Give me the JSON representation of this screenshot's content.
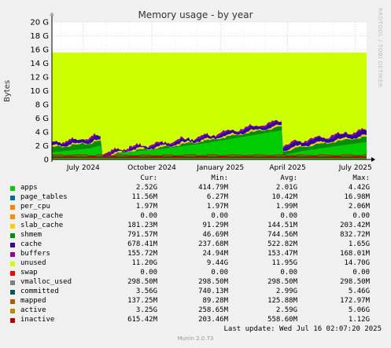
{
  "title": "Memory usage - by year",
  "side_text": "RRDTOOL / TOBI OETIKER",
  "footer": "Munin 2.0.73",
  "last_update": "Last update: Wed Jul 16 02:07:20 2025",
  "legend_headers": {
    "cur": "Cur:",
    "min": "Min:",
    "avg": "Avg:",
    "max": "Max:"
  },
  "legend": [
    {
      "name": "apps",
      "color": "#00cc00",
      "cur": "2.52G",
      "min": "414.79M",
      "avg": "2.01G",
      "max": "4.42G"
    },
    {
      "name": "page_tables",
      "color": "#0066b3",
      "cur": "11.56M",
      "min": "6.27M",
      "avg": "10.42M",
      "max": "16.98M"
    },
    {
      "name": "per_cpu",
      "color": "#ff8000",
      "cur": "1.97M",
      "min": "1.97M",
      "avg": "1.99M",
      "max": "2.06M"
    },
    {
      "name": "swap_cache",
      "color": "#ff8c00",
      "cur": "0.00",
      "min": "0.00",
      "avg": "0.00",
      "max": "0.00"
    },
    {
      "name": "slab_cache",
      "color": "#ffcc00",
      "cur": "181.23M",
      "min": "91.29M",
      "avg": "144.51M",
      "max": "203.42M"
    },
    {
      "name": "shmem",
      "color": "#008f00",
      "cur": "791.57M",
      "min": "46.69M",
      "avg": "744.56M",
      "max": "832.72M"
    },
    {
      "name": "cache",
      "color": "#330099",
      "cur": "678.41M",
      "min": "237.68M",
      "avg": "522.82M",
      "max": "1.65G"
    },
    {
      "name": "buffers",
      "color": "#990099",
      "cur": "155.72M",
      "min": "24.94M",
      "avg": "153.47M",
      "max": "168.01M"
    },
    {
      "name": "unused",
      "color": "#ccff00",
      "cur": "11.20G",
      "min": "9.44G",
      "avg": "11.95G",
      "max": "14.70G"
    },
    {
      "name": "swap",
      "color": "#ff0000",
      "cur": "0.00",
      "min": "0.00",
      "avg": "0.00",
      "max": "0.00"
    },
    {
      "name": "vmalloc_used",
      "color": "#808080",
      "cur": "298.50M",
      "min": "298.50M",
      "avg": "298.50M",
      "max": "298.50M"
    },
    {
      "name": "committed",
      "color": "#005a5a",
      "cur": "3.56G",
      "min": "740.13M",
      "avg": "2.99G",
      "max": "5.46G"
    },
    {
      "name": "mapped",
      "color": "#b35a00",
      "cur": "137.25M",
      "min": "89.28M",
      "avg": "125.88M",
      "max": "172.97M"
    },
    {
      "name": "active",
      "color": "#b38f00",
      "cur": "3.25G",
      "min": "258.65M",
      "avg": "2.59G",
      "max": "5.06G"
    },
    {
      "name": "inactive",
      "color": "#b30000",
      "cur": "615.42M",
      "min": "203.46M",
      "avg": "558.60M",
      "max": "1.12G"
    }
  ],
  "chart_data": {
    "type": "area",
    "title": "Memory usage - by year",
    "ylabel": "Bytes",
    "ylim": [
      0,
      20
    ],
    "y_unit": "G",
    "y_ticks": [
      "0",
      "2 G",
      "4 G",
      "6 G",
      "8 G",
      "10 G",
      "12 G",
      "14 G",
      "16 G",
      "18 G",
      "20 G"
    ],
    "x_ticks": [
      "July 2024",
      "October 2024",
      "January 2025",
      "April 2025",
      "July 2025"
    ],
    "x_range": [
      "2024-05-20",
      "2025-07-16"
    ],
    "total_gb": 15.55,
    "stack_order": [
      "apps",
      "shmem",
      "slab_cache",
      "cache",
      "buffers",
      "unused"
    ],
    "series": [
      {
        "name": "apps",
        "color": "#00cc00",
        "x": [
          "2024-05-20",
          "2024-07-10",
          "2024-07-24",
          "2024-07-27",
          "2024-08-31",
          "2024-10-15",
          "2024-12-15",
          "2025-03-24",
          "2025-03-26",
          "2025-04-20",
          "2025-07-16"
        ],
        "values": [
          1.0,
          1.6,
          2.0,
          0.3,
          1.1,
          1.5,
          2.4,
          4.2,
          0.6,
          1.2,
          2.52
        ]
      },
      {
        "name": "shmem",
        "color": "#008f00",
        "x": [
          "2024-05-20",
          "2024-07-24",
          "2024-07-27",
          "2025-07-16"
        ],
        "values": [
          0.75,
          0.75,
          0.1,
          0.79
        ]
      },
      {
        "name": "slab_cache",
        "color": "#ffcc00",
        "x": [
          "2024-05-20",
          "2025-07-16"
        ],
        "values": [
          0.15,
          0.18
        ]
      },
      {
        "name": "cache",
        "color": "#330099",
        "x": [
          "2024-05-20",
          "2024-07-24",
          "2024-07-27",
          "2025-07-16"
        ],
        "values": [
          0.5,
          0.6,
          0.25,
          0.68
        ]
      },
      {
        "name": "buffers",
        "color": "#990099",
        "x": [
          "2024-05-20",
          "2025-07-16"
        ],
        "values": [
          0.15,
          0.16
        ]
      }
    ],
    "lines": [
      {
        "name": "committed",
        "color": "#005a5a"
      },
      {
        "name": "active",
        "color": "#b38f00"
      },
      {
        "name": "inactive",
        "color": "#b30000"
      },
      {
        "name": "vmalloc_used",
        "color": "#808080"
      }
    ]
  }
}
